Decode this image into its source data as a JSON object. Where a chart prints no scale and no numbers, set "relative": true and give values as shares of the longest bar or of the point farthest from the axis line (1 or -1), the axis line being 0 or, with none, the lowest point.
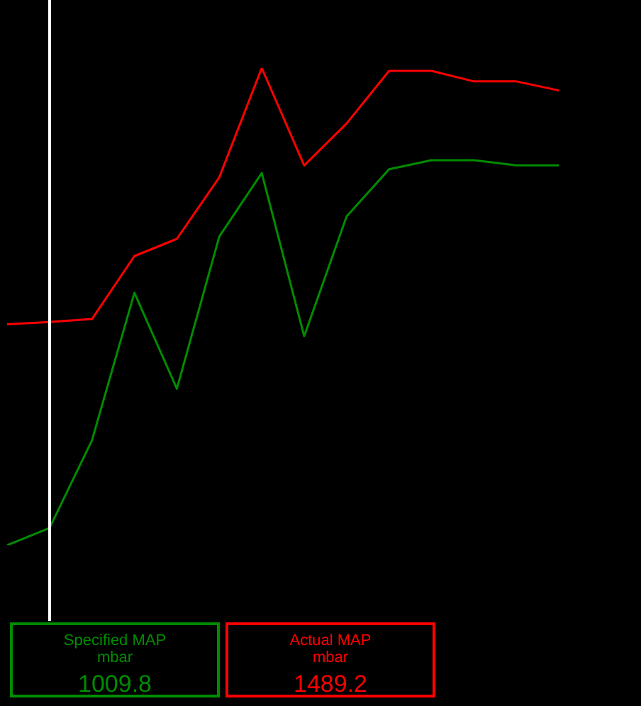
{
  "chart_data": {
    "type": "line",
    "relative": true,
    "categories": [
      null,
      null,
      null,
      null,
      null,
      null,
      null,
      null,
      null,
      null,
      null,
      null,
      null,
      null,
      null
    ],
    "series": [
      {
        "name": "Specified MAP",
        "color": "#008c00",
        "values": [
          0,
          0.036,
          0.22,
          0.529,
          0.328,
          0.647,
          0.78,
          0.438,
          0.689,
          0.788,
          0.807,
          0.807,
          0.796,
          0.796,
          null
        ]
      },
      {
        "name": "Actual MAP",
        "color": "#ff0000",
        "values": [
          0.463,
          0.468,
          0.474,
          0.606,
          0.642,
          0.771,
          1,
          0.796,
          0.884,
          0.994,
          0.994,
          0.972,
          0.972,
          0.953,
          null
        ]
      }
    ],
    "annotations": [
      "mbar",
      "1009.8",
      "mbar",
      "1489.2"
    ],
    "legend": "bottom",
    "grid": false,
    "marker": "none",
    "line_style": "solid"
  }
}
